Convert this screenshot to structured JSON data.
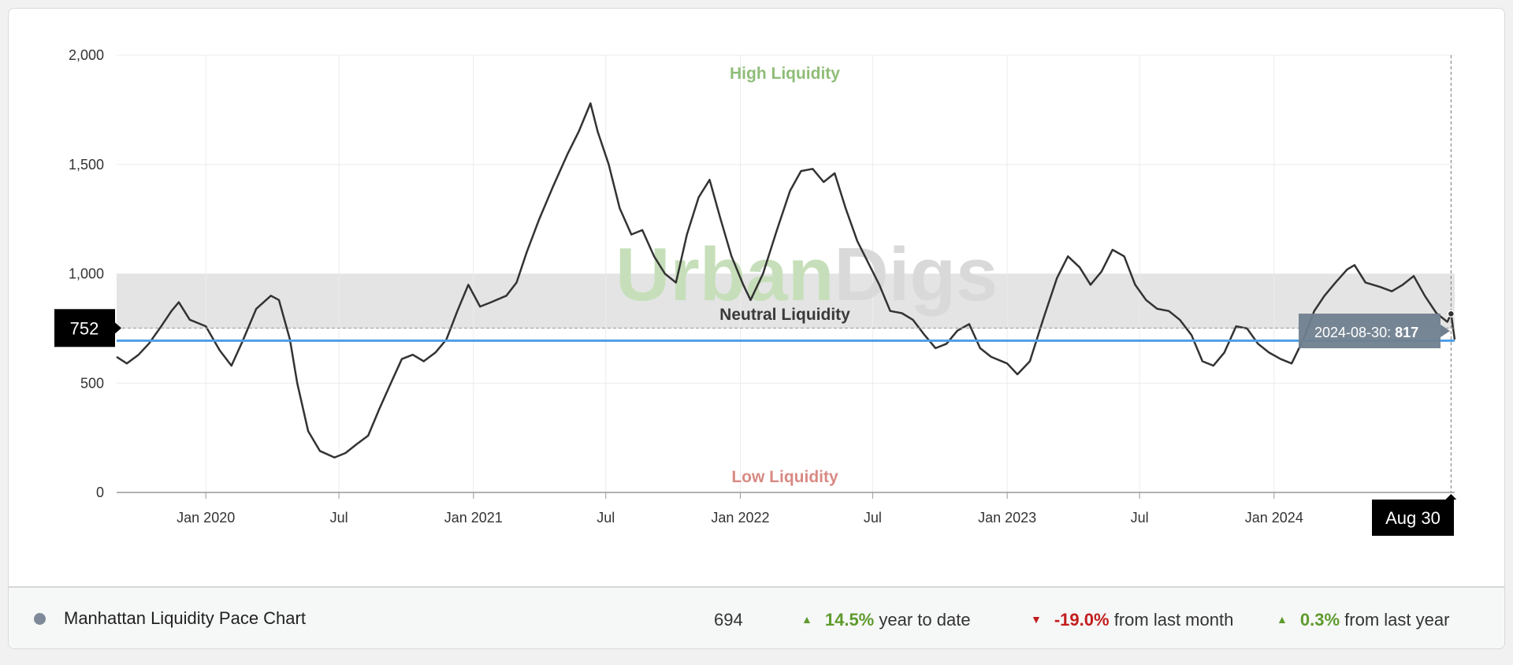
{
  "chart_data": {
    "type": "line",
    "title": "",
    "xlabel": "",
    "ylabel": "",
    "xlim": [
      "2019-09-01",
      "2024-09-04"
    ],
    "ylim": [
      0,
      2000
    ],
    "y_ticks": [
      0,
      500,
      1000,
      1500,
      2000
    ],
    "y_tick_labels": [
      "0",
      "500",
      "1,000",
      "1,500",
      "2,000"
    ],
    "x_ticks": [
      "2020-01-01",
      "2020-07-01",
      "2021-01-01",
      "2021-07-01",
      "2022-01-01",
      "2022-07-01",
      "2023-01-01",
      "2023-07-01",
      "2024-01-01"
    ],
    "x_tick_labels": [
      "Jan 2020",
      "Jul",
      "Jan 2021",
      "Jul",
      "Jan 2022",
      "Jul",
      "Jan 2023",
      "Jul",
      "Jan 2024"
    ],
    "grid": true,
    "neutral_band": [
      750,
      1000
    ],
    "reference_line": 694,
    "zone_labels": {
      "high": "High Liquidity",
      "neutral": "Neutral Liquidity",
      "low": "Low Liquidity"
    },
    "watermark": {
      "part1": "Urban",
      "part2": "Digs"
    },
    "crosshair": {
      "y_label": "752",
      "x_label": "Aug 30"
    },
    "tooltip": {
      "date_text": "2024-08-30:",
      "value_text": "817"
    },
    "series": [
      {
        "name": "Manhattan Liquidity Pace Chart",
        "color": "#333333",
        "points": [
          [
            "2019-09-01",
            620
          ],
          [
            "2019-09-15",
            590
          ],
          [
            "2019-10-01",
            630
          ],
          [
            "2019-10-15",
            680
          ],
          [
            "2019-11-01",
            760
          ],
          [
            "2019-11-15",
            830
          ],
          [
            "2019-11-25",
            870
          ],
          [
            "2019-12-10",
            790
          ],
          [
            "2020-01-01",
            760
          ],
          [
            "2020-01-20",
            650
          ],
          [
            "2020-02-05",
            580
          ],
          [
            "2020-02-20",
            690
          ],
          [
            "2020-03-10",
            840
          ],
          [
            "2020-03-30",
            900
          ],
          [
            "2020-04-10",
            880
          ],
          [
            "2020-04-25",
            700
          ],
          [
            "2020-05-05",
            500
          ],
          [
            "2020-05-20",
            280
          ],
          [
            "2020-06-05",
            190
          ],
          [
            "2020-06-25",
            160
          ],
          [
            "2020-07-10",
            180
          ],
          [
            "2020-07-25",
            220
          ],
          [
            "2020-08-10",
            260
          ],
          [
            "2020-08-25",
            380
          ],
          [
            "2020-09-10",
            500
          ],
          [
            "2020-09-25",
            610
          ],
          [
            "2020-10-10",
            630
          ],
          [
            "2020-10-25",
            600
          ],
          [
            "2020-11-10",
            640
          ],
          [
            "2020-11-25",
            700
          ],
          [
            "2020-12-10",
            830
          ],
          [
            "2020-12-25",
            950
          ],
          [
            "2021-01-10",
            850
          ],
          [
            "2021-01-25",
            870
          ],
          [
            "2021-02-15",
            900
          ],
          [
            "2021-03-01",
            960
          ],
          [
            "2021-03-15",
            1100
          ],
          [
            "2021-04-01",
            1250
          ],
          [
            "2021-04-20",
            1400
          ],
          [
            "2021-05-10",
            1550
          ],
          [
            "2021-05-25",
            1650
          ],
          [
            "2021-06-10",
            1780
          ],
          [
            "2021-06-20",
            1650
          ],
          [
            "2021-07-05",
            1500
          ],
          [
            "2021-07-20",
            1300
          ],
          [
            "2021-08-05",
            1180
          ],
          [
            "2021-08-20",
            1200
          ],
          [
            "2021-09-05",
            1080
          ],
          [
            "2021-09-20",
            1000
          ],
          [
            "2021-10-05",
            960
          ],
          [
            "2021-10-20",
            1180
          ],
          [
            "2021-11-05",
            1350
          ],
          [
            "2021-11-20",
            1430
          ],
          [
            "2021-12-05",
            1250
          ],
          [
            "2021-12-20",
            1080
          ],
          [
            "2022-01-05",
            950
          ],
          [
            "2022-01-15",
            880
          ],
          [
            "2022-02-01",
            1000
          ],
          [
            "2022-02-20",
            1200
          ],
          [
            "2022-03-10",
            1380
          ],
          [
            "2022-03-25",
            1470
          ],
          [
            "2022-04-10",
            1480
          ],
          [
            "2022-04-25",
            1420
          ],
          [
            "2022-05-10",
            1460
          ],
          [
            "2022-05-25",
            1300
          ],
          [
            "2022-06-10",
            1150
          ],
          [
            "2022-06-25",
            1050
          ],
          [
            "2022-07-10",
            950
          ],
          [
            "2022-07-25",
            830
          ],
          [
            "2022-08-10",
            820
          ],
          [
            "2022-08-25",
            790
          ],
          [
            "2022-09-10",
            720
          ],
          [
            "2022-09-25",
            660
          ],
          [
            "2022-10-10",
            680
          ],
          [
            "2022-10-25",
            740
          ],
          [
            "2022-11-10",
            770
          ],
          [
            "2022-11-25",
            660
          ],
          [
            "2022-12-10",
            620
          ],
          [
            "2023-01-01",
            590
          ],
          [
            "2023-01-15",
            540
          ],
          [
            "2023-02-01",
            600
          ],
          [
            "2023-02-20",
            800
          ],
          [
            "2023-03-10",
            980
          ],
          [
            "2023-03-25",
            1080
          ],
          [
            "2023-04-10",
            1030
          ],
          [
            "2023-04-25",
            950
          ],
          [
            "2023-05-10",
            1010
          ],
          [
            "2023-05-25",
            1110
          ],
          [
            "2023-06-10",
            1080
          ],
          [
            "2023-06-25",
            950
          ],
          [
            "2023-07-10",
            880
          ],
          [
            "2023-07-25",
            840
          ],
          [
            "2023-08-10",
            830
          ],
          [
            "2023-08-25",
            790
          ],
          [
            "2023-09-10",
            720
          ],
          [
            "2023-09-25",
            600
          ],
          [
            "2023-10-10",
            580
          ],
          [
            "2023-10-25",
            640
          ],
          [
            "2023-11-10",
            760
          ],
          [
            "2023-11-25",
            750
          ],
          [
            "2023-12-10",
            680
          ],
          [
            "2023-12-25",
            640
          ],
          [
            "2024-01-10",
            610
          ],
          [
            "2024-01-25",
            590
          ],
          [
            "2024-02-10",
            700
          ],
          [
            "2024-02-25",
            830
          ],
          [
            "2024-03-10",
            900
          ],
          [
            "2024-03-25",
            960
          ],
          [
            "2024-04-10",
            1020
          ],
          [
            "2024-04-20",
            1040
          ],
          [
            "2024-05-05",
            960
          ],
          [
            "2024-05-25",
            940
          ],
          [
            "2024-06-10",
            920
          ],
          [
            "2024-06-25",
            950
          ],
          [
            "2024-07-10",
            990
          ],
          [
            "2024-07-25",
            900
          ],
          [
            "2024-08-10",
            820
          ],
          [
            "2024-08-25",
            780
          ],
          [
            "2024-08-30",
            817
          ],
          [
            "2024-09-04",
            700
          ]
        ]
      }
    ]
  },
  "footer": {
    "series_name": "Manhattan Liquidity Pace Chart",
    "current_value": "694",
    "stats": [
      {
        "direction": "up",
        "arrow": "▲",
        "value": "14.5%",
        "label": "year to date"
      },
      {
        "direction": "down",
        "arrow": "▼",
        "value": "-19.0%",
        "label": "from last month"
      },
      {
        "direction": "up",
        "arrow": "▲",
        "value": "0.3%",
        "label": "from last year"
      }
    ]
  }
}
